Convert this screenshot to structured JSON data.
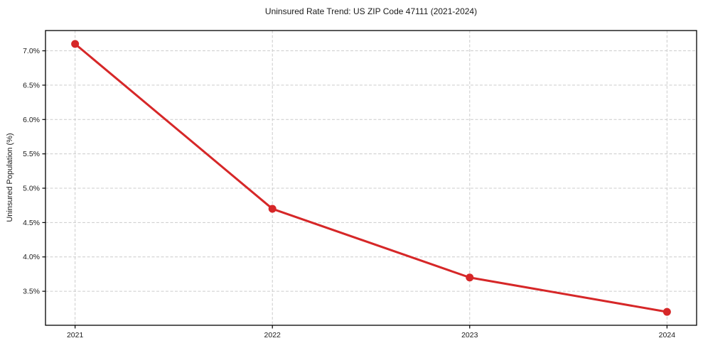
{
  "chart_data": {
    "type": "line",
    "title": "Uninsured Rate Trend: US ZIP Code 47111 (2021-2024)",
    "xlabel": "",
    "ylabel": "Uninsured Population (%)",
    "x": [
      2021,
      2022,
      2023,
      2024
    ],
    "values": [
      7.1,
      4.7,
      3.7,
      3.2
    ],
    "series_name": "Uninsured rate",
    "xticks": [
      2021,
      2022,
      2023,
      2024
    ],
    "xtick_labels": [
      "2021",
      "2022",
      "2023",
      "2024"
    ],
    "yticks": [
      3.5,
      4.0,
      4.5,
      5.0,
      5.5,
      6.0,
      6.5,
      7.0
    ],
    "ytick_labels": [
      "3.5%",
      "4.0%",
      "4.5%",
      "5.0%",
      "5.5%",
      "6.0%",
      "6.5%",
      "7.0%"
    ],
    "xlim": [
      2020.85,
      2024.15
    ],
    "ylim": [
      3.005,
      7.295
    ],
    "grid": true,
    "legend": false,
    "colors": {
      "line": "#d62728",
      "marker": "#d62728",
      "grid": "#cccccc",
      "axis": "#000000",
      "text": "#1a1a1a",
      "background": "#ffffff"
    }
  }
}
